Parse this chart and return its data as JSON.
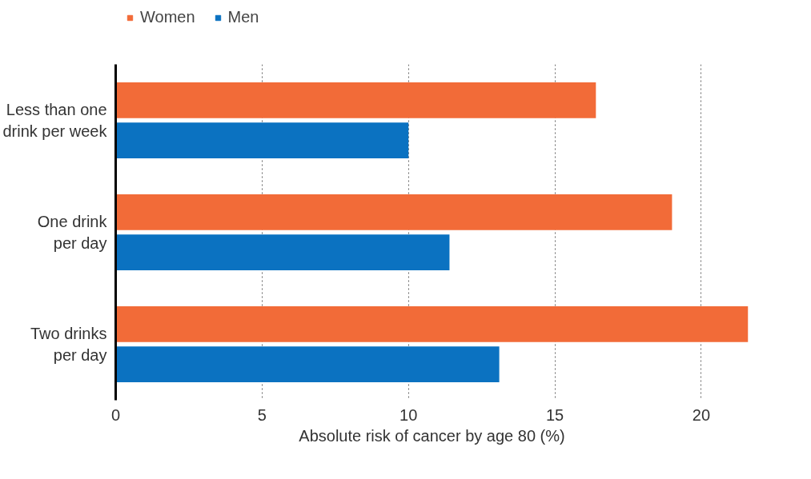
{
  "chart_data": {
    "type": "bar",
    "orientation": "horizontal",
    "xlabel": "Absolute risk of cancer by age 80 (%)",
    "categories": [
      "Less than one\ndrink per week",
      "One drink\nper day",
      "Two drinks\nper day"
    ],
    "series": [
      {
        "name": "Women",
        "color": "#f26b38",
        "values": [
          16.4,
          19.0,
          21.6
        ]
      },
      {
        "name": "Men",
        "color": "#0b72c1",
        "values": [
          10.0,
          11.4,
          13.1
        ]
      }
    ],
    "xlim": [
      0,
      21.6
    ],
    "xticks": [
      0,
      5,
      10,
      15,
      20
    ],
    "grid": "x",
    "legend": "top left"
  }
}
